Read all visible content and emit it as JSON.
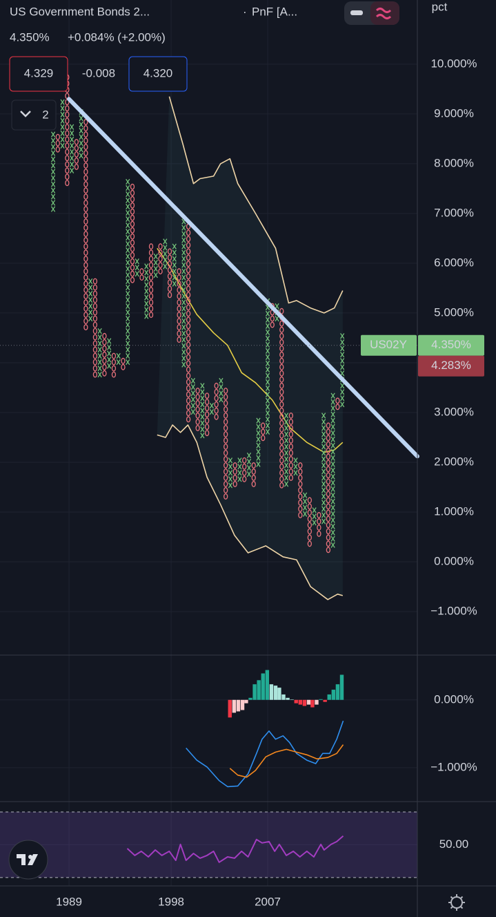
{
  "header": {
    "title": "US Government Bonds 2...",
    "separator": "·",
    "chart_style": "PnF [A...",
    "last": "4.350%",
    "change": "+0.084% (+2.00%)",
    "bid": "4.329",
    "spread": "-0.008",
    "ask": "4.320",
    "indicators_count": "2"
  },
  "chart_data": [
    {
      "type": "pnf",
      "y_axis_label": "pct",
      "xlim": [
        -11.4,
        78.1
      ],
      "ylim": [
        -1.875,
        11.29
      ],
      "yticks": [
        {
          "value": 10,
          "label": "10.000%"
        },
        {
          "value": 9,
          "label": "9.000%"
        },
        {
          "value": 8,
          "label": "8.000%"
        },
        {
          "value": 7,
          "label": "7.000%"
        },
        {
          "value": 6,
          "label": "6.000%"
        },
        {
          "value": 5,
          "label": "5.000%"
        },
        {
          "value": 4,
          "label": "4.000%"
        },
        {
          "value": 3,
          "label": "3.000%"
        },
        {
          "value": 2,
          "label": "2.000%"
        },
        {
          "value": 1,
          "label": "1.000%"
        },
        {
          "value": 0,
          "label": "0.000%"
        },
        {
          "value": -1,
          "label": "−1.000%"
        }
      ],
      "colors": {
        "X": "#74c27a",
        "O": "#e8727c"
      },
      "columns": {
        "kind": [
          "X",
          "O",
          "X",
          "O",
          "X",
          "O",
          "X",
          "O",
          "X",
          "O",
          "X",
          "O",
          "X",
          "O",
          "X",
          "O",
          "X",
          "O",
          "X",
          "O",
          "X",
          "O",
          "X",
          "O",
          "X",
          "O",
          "X",
          "O",
          "X",
          "O",
          "X",
          "O",
          "X",
          "O",
          "X",
          "O",
          "X",
          "O",
          "X",
          "O",
          "X",
          "O",
          "X",
          "O",
          "X",
          "O",
          "X",
          "O",
          "X",
          "O",
          "X",
          "O",
          "X",
          "O",
          "X",
          "O",
          "X",
          "O",
          "X",
          "O",
          "X",
          "O",
          "X"
        ],
        "high": [
          8.65,
          8.6,
          9.3,
          9.8,
          8.8,
          8.5,
          9.1,
          8.9,
          5.7,
          5.7,
          4.7,
          4.6,
          4.5,
          4.2,
          4.2,
          4.1,
          7.7,
          7.6,
          6.1,
          5.9,
          6.0,
          6.4,
          6.2,
          6.4,
          6.5,
          6.3,
          6.4,
          5.9,
          6.9,
          6.8,
          3.7,
          3.5,
          3.6,
          3.4,
          3.2,
          3.6,
          3.7,
          3.5,
          2.1,
          2.0,
          2.1,
          2.1,
          2.2,
          2.0,
          2.9,
          2.8,
          5.3,
          5.2,
          5.2,
          5.1,
          3.0,
          3.0,
          2.1,
          2.0,
          1.4,
          1.3,
          1.1,
          1.0,
          3.0,
          2.8,
          3.4,
          3.3,
          4.6
        ],
        "low": [
          7.0,
          8.2,
          8.3,
          7.5,
          7.7,
          7.8,
          8.0,
          4.6,
          4.8,
          3.7,
          3.7,
          3.7,
          3.8,
          3.7,
          3.9,
          3.8,
          3.9,
          5.5,
          5.7,
          5.6,
          4.8,
          4.9,
          5.7,
          5.7,
          5.8,
          5.2,
          5.5,
          4.3,
          3.9,
          2.8,
          2.9,
          2.6,
          2.4,
          2.5,
          2.9,
          2.8,
          3.1,
          1.2,
          1.4,
          1.5,
          1.6,
          1.6,
          1.65,
          1.5,
          1.8,
          2.4,
          2.5,
          4.7,
          4.8,
          1.4,
          1.5,
          1.6,
          1.7,
          0.8,
          0.8,
          0.25,
          0.7,
          0.5,
          0.7,
          0.1,
          0.25,
          3.0,
          3.0
        ]
      },
      "band_fill": "rgba(70,140,140,0.10)",
      "series": [
        {
          "color": "#f0d6a8",
          "x": [
            24.9,
            27.8,
            30.1,
            31.5,
            34.4,
            35.9,
            37.9,
            39.6,
            43.4,
            47.7,
            50.5,
            52.2,
            55.2,
            58.1,
            60.3,
            62.1
          ],
          "values": [
            9.35,
            8.4,
            7.6,
            7.7,
            7.75,
            8.0,
            8.1,
            7.6,
            7.0,
            6.3,
            5.2,
            5.25,
            5.1,
            5.0,
            5.1,
            5.45
          ]
        },
        {
          "color": "#f0d6a8",
          "x": [
            22.3,
            24.1,
            25.6,
            27.3,
            28.9,
            30.8,
            33.0,
            35.9,
            38.9,
            41.8,
            45.6,
            49.3,
            52.2,
            55.2,
            58.9,
            61.0,
            62.1
          ],
          "values": [
            2.55,
            2.5,
            2.75,
            2.6,
            2.75,
            2.4,
            1.7,
            1.15,
            0.53,
            0.18,
            0.32,
            0.1,
            0.04,
            -0.5,
            -0.76,
            -0.65,
            -0.68
          ]
        },
        {
          "color": "#e6cf45",
          "x": [
            22.3,
            24.9,
            27.8,
            30.8,
            34.4,
            37.4,
            40.4,
            43.4,
            47.0,
            50.7,
            54.4,
            58.1,
            60.3,
            62.1
          ],
          "values": [
            6.3,
            5.95,
            5.45,
            4.97,
            4.6,
            4.35,
            3.8,
            3.6,
            3.25,
            2.7,
            2.4,
            2.2,
            2.25,
            2.4
          ]
        }
      ],
      "trend_line": {
        "color": "#bcd4f2",
        "x": [
          3.4,
          78.1
        ],
        "values": [
          9.3,
          2.12
        ]
      },
      "last_price": {
        "symbol": "US02Y",
        "value": 4.35,
        "label": "4.350%",
        "color": "#7cc47f"
      },
      "second_price": {
        "value": 4.283,
        "label": "4.283%",
        "color": "#9a3944"
      }
    },
    {
      "type": "macd",
      "xlim": [
        -11.4,
        78.1
      ],
      "ylim": [
        -1.5,
        0.66
      ],
      "yticks": [
        {
          "value": 0,
          "label": "0.000%"
        },
        {
          "value": -1,
          "label": "−1.000%"
        }
      ],
      "histogram": {
        "x": [
          37.9,
          38.8,
          39.7,
          40.6,
          41.4,
          42.3,
          43.2,
          44.1,
          45.0,
          45.9,
          46.8,
          47.7,
          48.5,
          49.4,
          50.3,
          51.2,
          52.1,
          53.0,
          53.9,
          54.8,
          55.6,
          56.5,
          57.4,
          58.3,
          59.2,
          60.1,
          61.0,
          61.9
        ],
        "values": [
          -0.26,
          -0.19,
          -0.17,
          -0.15,
          -0.05,
          0.03,
          0.23,
          0.29,
          0.39,
          0.44,
          0.23,
          0.21,
          0.18,
          0.08,
          0.03,
          0.005,
          -0.05,
          -0.07,
          -0.09,
          -0.07,
          -0.11,
          -0.07,
          0.01,
          -0.03,
          0.08,
          0.15,
          0.23,
          0.37
        ],
        "colors": [
          "#f23645",
          "#fccbcd",
          "#fccbcd",
          "#fccbcd",
          "#fccbcd",
          "#22ab94",
          "#22ab94",
          "#22ab94",
          "#22ab94",
          "#22ab94",
          "#ace5dc",
          "#ace5dc",
          "#ace5dc",
          "#ace5dc",
          "#ace5dc",
          "#ace5dc",
          "#f23645",
          "#f23645",
          "#f23645",
          "#fccbcd",
          "#f23645",
          "#fccbcd",
          "#22ab94",
          "#f23645",
          "#22ab94",
          "#22ab94",
          "#22ab94",
          "#22ab94"
        ]
      },
      "series": [
        {
          "color": "#2f8ff0",
          "x": [
            28.5,
            30.8,
            33.0,
            35.6,
            37.4,
            39.6,
            41.8,
            43.6,
            44.8,
            46.3,
            47.7,
            49.3,
            50.7,
            52.2,
            54.4,
            56.3,
            57.8,
            59.3,
            60.8,
            62.2
          ],
          "values": [
            -0.71,
            -0.89,
            -0.99,
            -1.19,
            -1.28,
            -1.27,
            -1.09,
            -0.79,
            -0.58,
            -0.46,
            -0.58,
            -0.53,
            -0.63,
            -0.79,
            -0.89,
            -0.94,
            -0.79,
            -0.79,
            -0.58,
            -0.31
          ]
        },
        {
          "color": "#f7891e",
          "x": [
            37.9,
            39.6,
            41.5,
            43.4,
            45.6,
            47.7,
            50.0,
            52.2,
            54.4,
            56.6,
            58.9,
            60.8,
            62.2
          ],
          "values": [
            -1.01,
            -1.11,
            -1.14,
            -1.04,
            -0.84,
            -0.77,
            -0.73,
            -0.77,
            -0.81,
            -0.87,
            -0.85,
            -0.79,
            -0.66
          ]
        }
      ]
    },
    {
      "type": "rsi",
      "xlim": [
        -11.4,
        78.1
      ],
      "ylim": [
        24.9,
        76.3
      ],
      "yticks": [
        {
          "value": 50,
          "label": "50.00"
        }
      ],
      "xticks": [
        {
          "value": 3.4,
          "label": "1989"
        },
        {
          "value": 25.3,
          "label": "1998"
        },
        {
          "value": 46.0,
          "label": "2007"
        }
      ],
      "band_lines": [
        70,
        30
      ],
      "band_fill": "rgba(126,87,194,0.22)",
      "series": [
        {
          "color": "#a23cc0",
          "x": [
            15.9,
            17.5,
            18.9,
            20.4,
            21.9,
            23.3,
            24.9,
            26.3,
            27.3,
            28.5,
            30.1,
            31.5,
            33.0,
            34.4,
            35.6,
            37.4,
            38.9,
            40.4,
            41.8,
            43.6,
            44.8,
            46.3,
            47.5,
            48.5,
            50.0,
            51.5,
            52.9,
            54.4,
            55.9,
            57.4,
            58.1,
            59.6,
            60.8,
            62.2
          ],
          "values": [
            47.7,
            43.5,
            46.0,
            42.6,
            46.8,
            43.5,
            46.0,
            40.5,
            50.2,
            40.5,
            44.7,
            41.8,
            43.5,
            46.0,
            39.3,
            42.6,
            41.8,
            46.0,
            42.6,
            53.2,
            51.1,
            51.9,
            46.0,
            50.2,
            43.5,
            46.0,
            42.6,
            46.0,
            42.6,
            50.2,
            46.8,
            50.2,
            51.9,
            55.3
          ]
        }
      ]
    }
  ]
}
